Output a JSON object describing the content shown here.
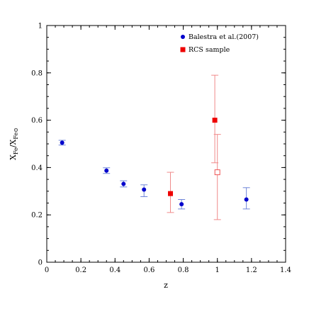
{
  "chart_data": {
    "type": "scatter",
    "xlabel": "z",
    "ylabel": "X_Fe/X_Fe⊙",
    "ylabel_main": "X",
    "ylabel_sub1": "Fe",
    "ylabel_sep": "/X",
    "ylabel_sub2": "Fe⊙",
    "xlim": [
      0,
      1.4
    ],
    "ylim": [
      0,
      1
    ],
    "x_ticks": [
      "0",
      "0.2",
      "0.4",
      "0.6",
      "0.8",
      "1",
      "1.2",
      "1.4"
    ],
    "y_ticks": [
      "0",
      "0.2",
      "0.4",
      "0.6",
      "0.8",
      "1"
    ],
    "legend_position": "top-right",
    "series": [
      {
        "name": "Balestra et al.(2007)",
        "color": "#0000cc",
        "marker": "circle",
        "points": [
          {
            "x": 0.09,
            "y": 0.505,
            "err_low": 0.01,
            "err_high": 0.01
          },
          {
            "x": 0.35,
            "y": 0.387,
            "err_low": 0.012,
            "err_high": 0.012
          },
          {
            "x": 0.45,
            "y": 0.331,
            "err_low": 0.013,
            "err_high": 0.013
          },
          {
            "x": 0.57,
            "y": 0.307,
            "err_low": 0.03,
            "err_high": 0.02
          },
          {
            "x": 0.79,
            "y": 0.245,
            "err_low": 0.02,
            "err_high": 0.02
          },
          {
            "x": 1.17,
            "y": 0.265,
            "err_low": 0.04,
            "err_high": 0.05
          }
        ]
      },
      {
        "name": "RCS sample",
        "color": "#ee0000",
        "marker": "square",
        "points": [
          {
            "x": 0.725,
            "y": 0.29,
            "err_low": 0.08,
            "err_high": 0.09
          },
          {
            "x": 0.985,
            "y": 0.6,
            "err_low": 0.18,
            "err_high": 0.19
          }
        ]
      }
    ],
    "extra_points": [
      {
        "x": 1.0,
        "y": 0.38,
        "err_low": 0.2,
        "err_high": 0.16,
        "color": "#ee0000",
        "marker": "open-square"
      }
    ]
  }
}
